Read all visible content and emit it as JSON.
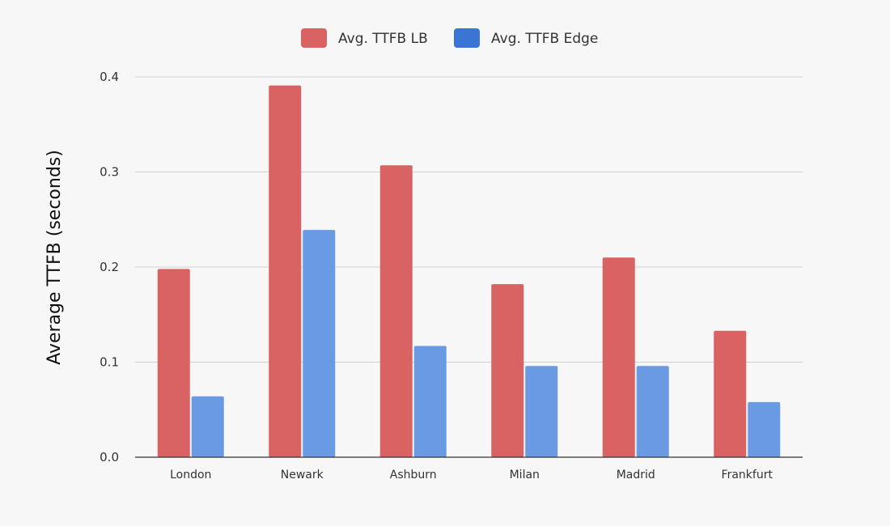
{
  "chart_data": {
    "type": "bar",
    "title": "",
    "xlabel": "",
    "ylabel": "Average TTFB (seconds)",
    "categories": [
      "London",
      "Newark",
      "Ashburn",
      "Milan",
      "Madrid",
      "Frankfurt"
    ],
    "series": [
      {
        "name": "Avg. TTFB LB",
        "color": "#d96262",
        "values": [
          0.198,
          0.391,
          0.307,
          0.182,
          0.21,
          0.133
        ]
      },
      {
        "name": "Avg. TTFB Edge",
        "color": "#6a9ae3",
        "values": [
          0.064,
          0.239,
          0.117,
          0.096,
          0.096,
          0.058
        ]
      }
    ],
    "ylim": [
      0,
      0.4
    ],
    "yticks": [
      "0.0",
      "0.1",
      "0.2",
      "0.3",
      "0.4"
    ],
    "grid": true,
    "legend_position": "top-center",
    "legend_swatch_colors": [
      "#d96262",
      "#3a74d4"
    ]
  }
}
